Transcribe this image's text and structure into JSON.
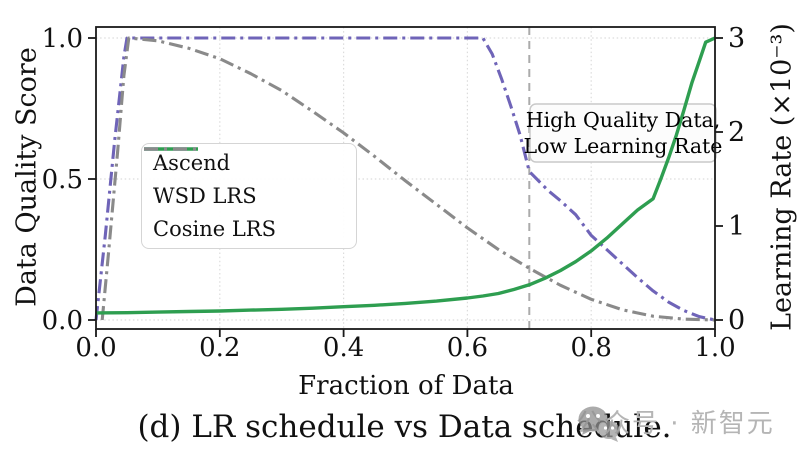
{
  "caption": "(d) LR schedule vs Data schedule.",
  "watermark": {
    "icon": "wechat-icon",
    "text": "公众号 · 新智元"
  },
  "chart_data": {
    "type": "line",
    "xlabel": "Fraction of Data",
    "ylabel_left": "Data Quality Score",
    "ylabel_right": "Learning Rate (×10⁻³)",
    "xlim": [
      0,
      1
    ],
    "ylim_left": [
      0,
      1
    ],
    "ylim_right": [
      0,
      3
    ],
    "grid": true,
    "legend_position": "center-left",
    "xticks": {
      "values": [
        0,
        0.2,
        0.4,
        0.6,
        0.8,
        1.0
      ],
      "labels": [
        "0.0",
        "0.2",
        "0.4",
        "0.6",
        "0.8",
        "1.0"
      ]
    },
    "yticks_left": {
      "values": [
        0,
        0.5,
        1.0
      ],
      "labels": [
        "0.0",
        "0.5",
        "1.0"
      ]
    },
    "yticks_right": {
      "values": [
        0,
        1,
        2,
        3
      ],
      "labels": [
        "0",
        "1",
        "2",
        "3"
      ]
    },
    "annotation": {
      "lines": [
        "High Quality Data,",
        "Low Learning Rate"
      ],
      "vline_x": 0.7
    },
    "series": [
      {
        "name": "WSD LRS",
        "axis": "right",
        "color": "#6f64b8",
        "style": "dashdot",
        "points": [
          [
            0,
            0
          ],
          [
            0.015,
            0.9
          ],
          [
            0.03,
            1.9
          ],
          [
            0.045,
            2.8
          ],
          [
            0.05,
            3.0
          ],
          [
            0.1,
            3.0
          ],
          [
            0.2,
            3.0
          ],
          [
            0.3,
            3.0
          ],
          [
            0.4,
            3.0
          ],
          [
            0.5,
            3.0
          ],
          [
            0.6,
            3.0
          ],
          [
            0.625,
            3.0
          ],
          [
            0.64,
            2.83
          ],
          [
            0.655,
            2.57
          ],
          [
            0.67,
            2.28
          ],
          [
            0.685,
            1.97
          ],
          [
            0.7,
            1.58
          ],
          [
            0.715,
            1.48
          ],
          [
            0.73,
            1.38
          ],
          [
            0.75,
            1.27
          ],
          [
            0.775,
            1.12
          ],
          [
            0.8,
            0.9
          ],
          [
            0.825,
            0.75
          ],
          [
            0.85,
            0.6
          ],
          [
            0.875,
            0.45
          ],
          [
            0.9,
            0.31
          ],
          [
            0.925,
            0.19
          ],
          [
            0.95,
            0.1
          ],
          [
            0.975,
            0.035
          ],
          [
            1.0,
            0
          ]
        ]
      },
      {
        "name": "Cosine LRS",
        "axis": "right",
        "color": "#8a8a8a",
        "style": "dashdot",
        "points": [
          [
            0.01,
            0
          ],
          [
            0.02,
            0.7
          ],
          [
            0.035,
            1.8
          ],
          [
            0.045,
            2.6
          ],
          [
            0.053,
            3.0
          ],
          [
            0.1,
            2.97
          ],
          [
            0.15,
            2.89
          ],
          [
            0.2,
            2.78
          ],
          [
            0.25,
            2.62
          ],
          [
            0.3,
            2.44
          ],
          [
            0.35,
            2.22
          ],
          [
            0.4,
            1.99
          ],
          [
            0.45,
            1.74
          ],
          [
            0.5,
            1.48
          ],
          [
            0.55,
            1.23
          ],
          [
            0.6,
            0.98
          ],
          [
            0.65,
            0.75
          ],
          [
            0.7,
            0.55
          ],
          [
            0.75,
            0.37
          ],
          [
            0.8,
            0.22
          ],
          [
            0.85,
            0.11
          ],
          [
            0.9,
            0.04
          ],
          [
            0.95,
            0.01
          ],
          [
            1.0,
            0
          ]
        ]
      },
      {
        "name": "Ascend",
        "axis": "left",
        "color": "#2e9e50",
        "style": "solid",
        "points": [
          [
            0,
            0.025
          ],
          [
            0.05,
            0.026
          ],
          [
            0.1,
            0.028
          ],
          [
            0.15,
            0.03
          ],
          [
            0.2,
            0.032
          ],
          [
            0.25,
            0.035
          ],
          [
            0.3,
            0.038
          ],
          [
            0.35,
            0.042
          ],
          [
            0.4,
            0.047
          ],
          [
            0.45,
            0.052
          ],
          [
            0.5,
            0.059
          ],
          [
            0.55,
            0.067
          ],
          [
            0.6,
            0.078
          ],
          [
            0.625,
            0.085
          ],
          [
            0.65,
            0.094
          ],
          [
            0.675,
            0.108
          ],
          [
            0.7,
            0.125
          ],
          [
            0.725,
            0.148
          ],
          [
            0.75,
            0.175
          ],
          [
            0.775,
            0.207
          ],
          [
            0.8,
            0.245
          ],
          [
            0.825,
            0.29
          ],
          [
            0.85,
            0.34
          ],
          [
            0.875,
            0.39
          ],
          [
            0.9,
            0.43
          ],
          [
            0.9125,
            0.5
          ],
          [
            0.925,
            0.575
          ],
          [
            0.9375,
            0.655
          ],
          [
            0.95,
            0.745
          ],
          [
            0.9625,
            0.84
          ],
          [
            0.975,
            0.92
          ],
          [
            0.985,
            0.985
          ],
          [
            1.0,
            1.0
          ]
        ]
      }
    ],
    "legend_order": [
      2,
      0,
      1
    ]
  }
}
